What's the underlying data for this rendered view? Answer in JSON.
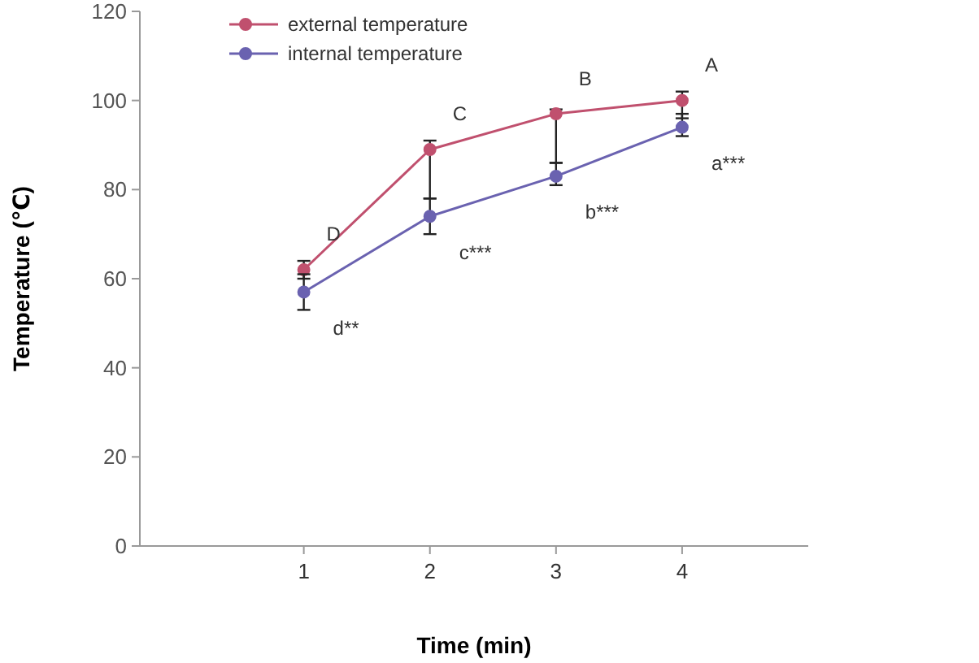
{
  "chart_data": {
    "type": "line",
    "xlabel": "Time (min)",
    "ylabel": "Temperature (℃)",
    "x": [
      1,
      2,
      3,
      4
    ],
    "xlim": [
      -0.3,
      5
    ],
    "xticks": [
      1,
      2,
      3,
      4
    ],
    "ylim": [
      0,
      120
    ],
    "yticks": [
      0,
      20,
      40,
      60,
      80,
      100,
      120
    ],
    "series": [
      {
        "name": "external temperature",
        "color": "#c0506e",
        "values": [
          62,
          89,
          97,
          100
        ],
        "errors": [
          [
            60,
            64
          ],
          [
            78,
            91
          ],
          [
            86,
            98
          ],
          [
            96,
            102
          ]
        ]
      },
      {
        "name": "internal temperature",
        "color": "#6a62b0",
        "values": [
          57,
          74,
          83,
          94
        ],
        "errors": [
          [
            53,
            61
          ],
          [
            70,
            78
          ],
          [
            81,
            86
          ],
          [
            92,
            97
          ]
        ]
      }
    ],
    "annotations": [
      {
        "text": "D",
        "x": 1,
        "y": 62
      },
      {
        "text": "C",
        "x": 2,
        "y": 89
      },
      {
        "text": "B",
        "x": 3,
        "y": 97
      },
      {
        "text": "A",
        "x": 4,
        "y": 100
      },
      {
        "text": "d**",
        "x": 1,
        "y": 57
      },
      {
        "text": "c***",
        "x": 2,
        "y": 74
      },
      {
        "text": "b***",
        "x": 3,
        "y": 83
      },
      {
        "text": "a***",
        "x": 4,
        "y": 94
      }
    ],
    "grid": false,
    "legend": "top left",
    "marker": "circle",
    "line_style": "solid"
  }
}
